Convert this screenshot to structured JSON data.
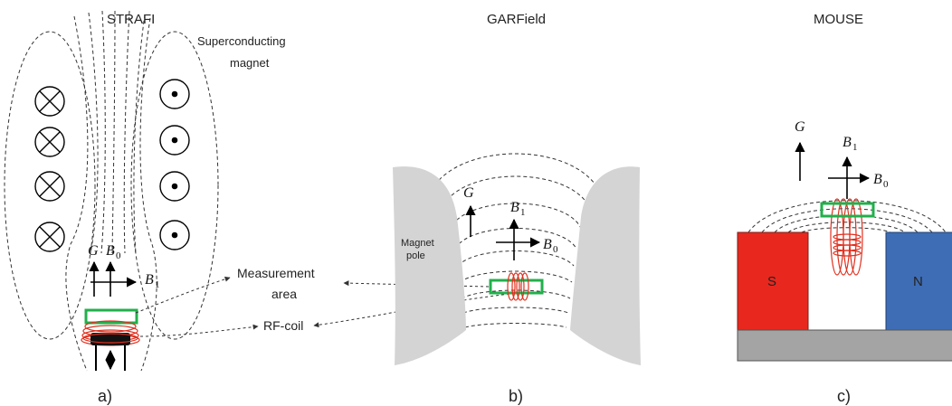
{
  "panels": {
    "strafi": {
      "title": "STRAFI",
      "magnet_label_line1": "Superconducting",
      "magnet_label_line2": "magnet",
      "g_label": "G",
      "b0_label": "B",
      "b0_sub": "0",
      "b1_label": "B",
      "b1_sub": "1",
      "caption": "a)"
    },
    "garfield": {
      "title": "GARField",
      "pole_label_line1": "Magnet",
      "pole_label_line2": "pole",
      "g_label": "G",
      "b1_label": "B",
      "b1_sub": "1",
      "b0_label": "B",
      "b0_sub": "0",
      "caption": "b)"
    },
    "mouse": {
      "title": "MOUSE",
      "g_label": "G",
      "b1_label": "B",
      "b1_sub": "1",
      "b0_label": "B",
      "b0_sub": "0",
      "south_label": "S",
      "north_label": "N",
      "caption": "c)"
    }
  },
  "callouts": {
    "measurement_line1": "Measurement",
    "measurement_line2": "area",
    "rf_coil": "RF-coil"
  },
  "colors": {
    "measurement_box": "#21b04b",
    "rf_coil": "#e0301e",
    "south_magnet": "#e8281e",
    "north_magnet": "#3e6db5",
    "pole_piece": "#d4d4d4",
    "base_plate": "#a4a4a4"
  },
  "icons": {
    "current_into_page": "circle-cross-icon",
    "current_out_of_page": "circle-dot-icon"
  }
}
